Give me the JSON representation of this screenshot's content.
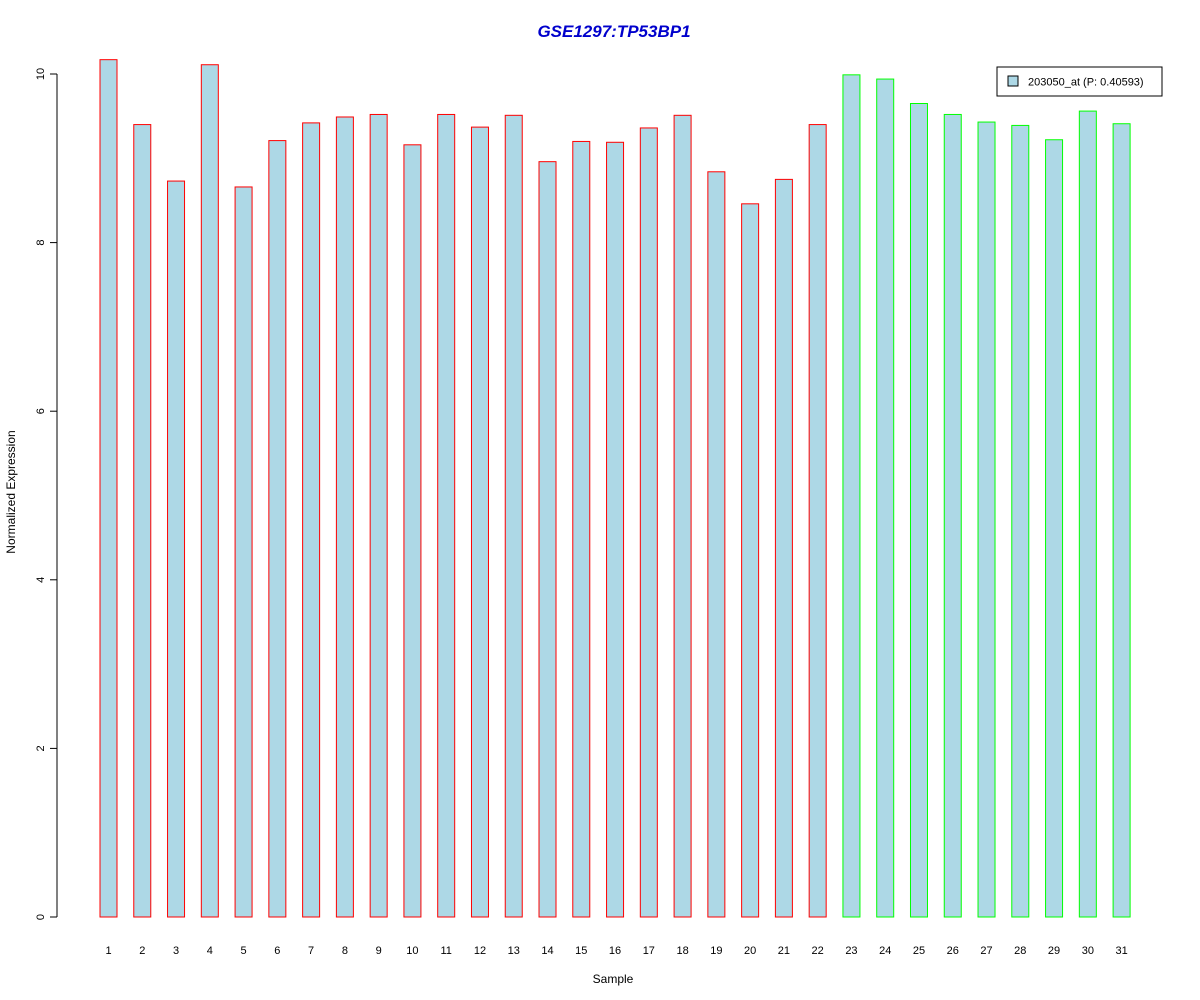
{
  "chart_data": {
    "type": "bar",
    "title": "GSE1297:TP53BP1",
    "xlabel": "Sample",
    "ylabel": "Normalized Expression",
    "ylim": [
      0,
      10
    ],
    "yticks": [
      "0",
      "2",
      "4",
      "6",
      "8",
      "10"
    ],
    "categories": [
      "1",
      "2",
      "3",
      "4",
      "5",
      "6",
      "7",
      "8",
      "9",
      "10",
      "11",
      "12",
      "13",
      "14",
      "15",
      "16",
      "17",
      "18",
      "19",
      "20",
      "21",
      "22",
      "23",
      "24",
      "25",
      "26",
      "27",
      "28",
      "29",
      "30",
      "31"
    ],
    "series": [
      {
        "name": "203050_at (P: 0.40593)",
        "values": [
          10.17,
          9.4,
          8.73,
          10.11,
          8.66,
          9.21,
          9.42,
          9.49,
          9.52,
          9.16,
          9.52,
          9.37,
          9.51,
          8.96,
          9.2,
          9.19,
          9.36,
          9.51,
          8.84,
          8.46,
          8.75,
          9.4,
          9.99,
          9.94,
          9.65,
          9.52,
          9.43,
          9.39,
          9.22,
          9.56,
          9.41
        ]
      }
    ],
    "fill_color": "#add8e6",
    "outline_colors": [
      "#ff0000",
      "#ff0000",
      "#ff0000",
      "#ff0000",
      "#ff0000",
      "#ff0000",
      "#ff0000",
      "#ff0000",
      "#ff0000",
      "#ff0000",
      "#ff0000",
      "#ff0000",
      "#ff0000",
      "#ff0000",
      "#ff0000",
      "#ff0000",
      "#ff0000",
      "#ff0000",
      "#ff0000",
      "#ff0000",
      "#ff0000",
      "#ff0000",
      "#00ff00",
      "#00ff00",
      "#00ff00",
      "#00ff00",
      "#00ff00",
      "#00ff00",
      "#00ff00",
      "#00ff00",
      "#00ff00"
    ],
    "title_color": "#0000cc",
    "legend_position": "top-right",
    "grid": false
  }
}
